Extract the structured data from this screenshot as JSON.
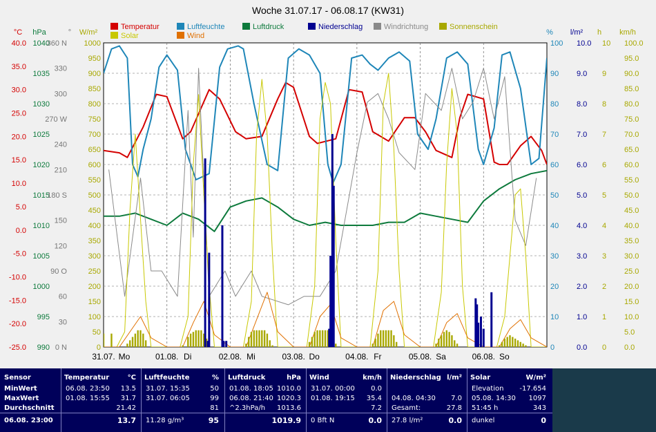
{
  "chart_data": {
    "type": "line",
    "title": "Woche 31.07.17 - 06.08.17 (KW31)",
    "legend": [
      {
        "name": "Temperatur",
        "color": "#d40000"
      },
      {
        "name": "Luftfeuchte",
        "color": "#1e86b8"
      },
      {
        "name": "Luftdruck",
        "color": "#0d7a3c"
      },
      {
        "name": "Niederschlag",
        "color": "#000090"
      },
      {
        "name": "Windrichtung",
        "color": "#8a8a8a"
      },
      {
        "name": "Sonnenschein",
        "color": "#a8a800"
      },
      {
        "name": "Solar",
        "color": "#c8c800"
      },
      {
        "name": "Wind",
        "color": "#e07000"
      }
    ],
    "axes": {
      "temp": {
        "unit": "°C",
        "color": "#d40000",
        "ticks": [
          "40.0",
          "35.0",
          "30.0",
          "25.0",
          "20.0",
          "15.0",
          "10.0",
          "5.0",
          "0.0",
          "-5.0",
          "-10.0",
          "-15.0",
          "-20.0",
          "-25.0"
        ]
      },
      "pressure": {
        "unit": "hPa",
        "color": "#0d7a3c",
        "ticks": [
          "1040",
          "1035",
          "1030",
          "1025",
          "1020",
          "1015",
          "1010",
          "1005",
          "1000",
          "995",
          "990"
        ]
      },
      "direction": {
        "unit": "°",
        "color": "#777777",
        "ticks": [
          "360 N",
          "330",
          "300",
          "270 W",
          "240",
          "210",
          "180 S",
          "150",
          "120",
          "90  O",
          "60",
          "30",
          "0   N"
        ]
      },
      "solar": {
        "unit": "W/m²",
        "color": "#a8a800",
        "ticks": [
          "1000",
          "950",
          "900",
          "850",
          "800",
          "750",
          "700",
          "650",
          "600",
          "550",
          "500",
          "450",
          "400",
          "350",
          "300",
          "250",
          "200",
          "150",
          "100",
          "50",
          "0"
        ]
      },
      "humidity": {
        "unit": "%",
        "color": "#1e86b8",
        "ticks": [
          "100",
          "90",
          "80",
          "70",
          "60",
          "50",
          "40",
          "30",
          "20",
          "10",
          "0"
        ]
      },
      "rain": {
        "unit": "l/m²",
        "color": "#000090",
        "ticks": [
          "10.0",
          "9.0",
          "8.0",
          "7.0",
          "6.0",
          "5.0",
          "4.0",
          "3.0",
          "2.0",
          "1.0",
          "0.0"
        ]
      },
      "sunshine": {
        "unit": "h",
        "color": "#a8a800",
        "ticks": [
          "10",
          "9",
          "8",
          "7",
          "6",
          "5",
          "4",
          "3",
          "2",
          "1",
          "0"
        ]
      },
      "wind": {
        "unit": "km/h",
        "color": "#a8a800",
        "ticks": [
          "100.0",
          "95.0",
          "90.0",
          "85.0",
          "80.0",
          "75.0",
          "70.0",
          "65.0",
          "60.0",
          "55.0",
          "50.0",
          "45.0",
          "40.0",
          "35.0",
          "30.0",
          "25.0",
          "20.0",
          "15.0",
          "10.0",
          "5.0",
          "0.0"
        ]
      }
    },
    "x_days": [
      {
        "date": "31.07.",
        "day": "Mo"
      },
      {
        "date": "01.08.",
        "day": "Di"
      },
      {
        "date": "02.08.",
        "day": "Mi"
      },
      {
        "date": "03.08.",
        "day": "Do"
      },
      {
        "date": "04.08.",
        "day": "Fr"
      },
      {
        "date": "05.08.",
        "day": "Sa"
      },
      {
        "date": "06.08.",
        "day": "So"
      }
    ],
    "series": [
      {
        "name": "Temperatur",
        "axis": "temp",
        "x_hours": [
          0,
          6,
          9,
          15,
          20,
          24,
          30,
          33,
          40,
          44,
          50,
          54,
          60,
          66,
          69,
          72,
          78,
          81,
          88,
          93,
          98,
          102,
          105,
          108,
          114,
          118,
          122,
          126,
          132,
          135,
          138,
          144,
          148,
          150,
          153,
          158,
          162,
          166,
          168
        ],
        "values": [
          17,
          16.5,
          15.5,
          22,
          29,
          28.5,
          19.5,
          21,
          30,
          28,
          21,
          19.5,
          20,
          28,
          31.5,
          30.5,
          20,
          18.5,
          19.5,
          30,
          29.5,
          21,
          20,
          19,
          24,
          24,
          21,
          17,
          15.5,
          24,
          29,
          28,
          14.5,
          14,
          14,
          18,
          20,
          17,
          14
        ]
      },
      {
        "name": "Luftfeuchte",
        "axis": "humidity",
        "x_hours": [
          0,
          3,
          6,
          9,
          11,
          13,
          15,
          18,
          21,
          24,
          28,
          31,
          35,
          40,
          44,
          47,
          51,
          53,
          57,
          62,
          66,
          70,
          74,
          78,
          82,
          85,
          87,
          90,
          94,
          98,
          101,
          104,
          108,
          112,
          116,
          119,
          123,
          126,
          130,
          134,
          138,
          142,
          144,
          148,
          151,
          154,
          158,
          162,
          165,
          168
        ],
        "values": [
          90,
          98,
          99,
          95,
          60,
          56,
          65,
          75,
          92,
          96,
          91,
          65,
          55,
          57,
          92,
          98,
          99,
          98,
          80,
          60,
          58,
          95,
          98,
          96,
          90,
          60,
          54,
          60,
          95,
          96,
          93,
          91,
          95,
          97,
          94,
          70,
          65,
          75,
          95,
          97,
          93,
          65,
          60,
          72,
          96,
          97,
          85,
          60,
          62,
          95
        ]
      },
      {
        "name": "Luftdruck",
        "axis": "pressure",
        "x_hours": [
          0,
          6,
          12,
          18,
          24,
          30,
          36,
          42,
          48,
          54,
          60,
          66,
          72,
          78,
          84,
          90,
          96,
          102,
          108,
          114,
          120,
          126,
          132,
          138,
          144,
          150,
          156,
          162,
          168
        ],
        "values": [
          1011.5,
          1011.5,
          1012,
          1011,
          1010,
          1012,
          1011,
          1009,
          1013,
          1014,
          1014.5,
          1013,
          1011,
          1010,
          1010.5,
          1010,
          1010,
          1010,
          1010.5,
          1010.5,
          1012,
          1011.5,
          1011,
          1010.5,
          1014,
          1016,
          1017.5,
          1018.5,
          1019
        ]
      },
      {
        "name": "Windrichtung",
        "axis": "direction",
        "x_hours": [
          2,
          8,
          14,
          18,
          22,
          28,
          32,
          34,
          36,
          40,
          46,
          50,
          56,
          60,
          70,
          76,
          82,
          88,
          96,
          100,
          104,
          108,
          112,
          118,
          122,
          128,
          132,
          136,
          140,
          144,
          148,
          152,
          156,
          160,
          164
        ],
        "values": [
          210,
          60,
          200,
          90,
          90,
          60,
          280,
          130,
          330,
          60,
          90,
          60,
          90,
          60,
          50,
          60,
          60,
          90,
          230,
          290,
          300,
          270,
          230,
          210,
          300,
          280,
          330,
          270,
          290,
          330,
          270,
          320,
          150,
          120,
          200
        ]
      },
      {
        "name": "Solar",
        "axis": "solar",
        "x_hours": [
          0,
          5,
          8,
          10,
          12,
          14,
          16,
          18,
          24,
          29,
          32,
          34,
          36,
          38,
          40,
          42,
          48,
          53,
          56,
          58,
          60,
          62,
          64,
          66,
          72,
          77,
          80,
          82,
          84,
          86,
          88,
          90,
          96,
          101,
          104,
          106,
          108,
          110,
          112,
          114,
          120,
          125,
          128,
          130,
          132,
          134,
          136,
          138,
          144,
          149,
          152,
          154,
          156,
          158,
          160,
          162,
          168
        ],
        "values": [
          0,
          0,
          50,
          450,
          700,
          420,
          150,
          0,
          0,
          0,
          100,
          600,
          830,
          500,
          200,
          0,
          0,
          0,
          150,
          700,
          880,
          700,
          300,
          0,
          0,
          0,
          200,
          750,
          870,
          800,
          350,
          0,
          0,
          0,
          250,
          800,
          900,
          650,
          250,
          0,
          0,
          0,
          180,
          600,
          850,
          700,
          200,
          0,
          0,
          0,
          100,
          300,
          500,
          520,
          300,
          0,
          0
        ]
      },
      {
        "name": "Wind",
        "axis": "wind",
        "x_hours": [
          0,
          6,
          10,
          14,
          18,
          24,
          30,
          34,
          38,
          42,
          48,
          54,
          58,
          62,
          66,
          72,
          78,
          82,
          86,
          90,
          96,
          102,
          106,
          110,
          114,
          120,
          126,
          130,
          134,
          138,
          144,
          150,
          154,
          158,
          162,
          168
        ],
        "values": [
          0,
          0,
          5,
          10,
          3,
          0,
          0,
          8,
          15,
          4,
          0,
          0,
          9,
          18,
          5,
          0,
          0,
          10,
          14,
          3,
          0,
          0,
          12,
          15,
          4,
          0,
          0,
          8,
          11,
          3,
          0,
          0,
          6,
          9,
          3,
          0
        ]
      },
      {
        "name": "Sonnenschein",
        "axis": "sunshine",
        "x_hours": [
          0,
          3,
          6,
          9,
          10,
          11,
          12,
          13,
          14,
          15,
          16,
          24,
          30,
          32,
          33,
          34,
          35,
          36,
          37,
          38,
          39,
          40,
          48,
          54,
          55,
          56,
          57,
          58,
          59,
          60,
          61,
          62,
          63,
          64,
          72,
          78,
          79,
          80,
          81,
          82,
          83,
          84,
          85,
          86,
          87,
          88,
          96,
          102,
          103,
          104,
          105,
          106,
          107,
          108,
          109,
          110,
          111,
          120,
          126,
          127,
          128,
          129,
          130,
          131,
          132,
          133,
          134,
          144,
          150,
          151,
          152,
          153,
          154,
          155,
          156,
          157,
          158,
          159,
          160
        ],
        "values": [
          0.8,
          0.8,
          0,
          0.2,
          0.4,
          0.6,
          0.8,
          1,
          1,
          0.8,
          0.4,
          0,
          0.1,
          0.6,
          0.8,
          0.9,
          1,
          1,
          1,
          0.8,
          0.5,
          0.2,
          0,
          0.2,
          0.6,
          0.9,
          1,
          1,
          1,
          1,
          1,
          0.8,
          0.4,
          0.1,
          0,
          0.3,
          0.6,
          0.9,
          1,
          1,
          1,
          1,
          1,
          0.9,
          0.6,
          0.2,
          0,
          0.2,
          0.5,
          0.8,
          1,
          1,
          1,
          1,
          1,
          0.7,
          0.3,
          0,
          0.2,
          0.5,
          0.7,
          0.9,
          1,
          0.9,
          0.7,
          0.4,
          0.2,
          0,
          0.1,
          0.3,
          0.5,
          0.6,
          0.7,
          0.6,
          0.5,
          0.4,
          0.3,
          0.2,
          0.1
        ]
      },
      {
        "name": "Niederschlag",
        "axis": "rain",
        "x_hours": [
          38.5,
          39.5,
          40,
          45,
          45.5,
          46.5,
          85.5,
          86,
          86.7,
          87.2,
          141,
          141.5,
          142,
          143,
          144,
          147
        ],
        "values": [
          6.2,
          0.2,
          3.1,
          4.0,
          0.2,
          0.2,
          0.6,
          3.0,
          7.0,
          5.3,
          1.6,
          1.4,
          0.8,
          1.0,
          0.6,
          1.8
        ]
      }
    ]
  },
  "table": {
    "cols": [
      {
        "key": "sensor",
        "head": "Sensor",
        "unit": "",
        "rows": [
          "MinWert",
          "MaxWert",
          "Durchschnitt"
        ],
        "foot": "06.08. 23:00"
      },
      {
        "key": "temp",
        "head": "Temperatur",
        "unit": "°C",
        "rows": [
          [
            "06.08. 23:50",
            "13.5"
          ],
          [
            "01.08. 15:55",
            "31.7"
          ],
          [
            "",
            "21.42"
          ]
        ],
        "foot": [
          "",
          "13.7"
        ]
      },
      {
        "key": "hum",
        "head": "Luftfeuchte",
        "unit": "%",
        "rows": [
          [
            "31.07. 15:35",
            "50"
          ],
          [
            "31.07. 06:05",
            "99"
          ],
          [
            "",
            "81"
          ]
        ],
        "foot": [
          "11.28 g/m³",
          "95"
        ]
      },
      {
        "key": "press",
        "head": "Luftdruck",
        "unit": "hPa",
        "rows": [
          [
            "01.08. 18:05",
            "1010.0"
          ],
          [
            "06.08. 21:40",
            "1020.3"
          ],
          [
            "^2.3hPa/h",
            "1013.6"
          ]
        ],
        "foot": [
          "",
          "1019.9"
        ]
      },
      {
        "key": "wind",
        "head": "Wind",
        "unit": "km/h",
        "rows": [
          [
            "31.07. 00:00",
            "0.0"
          ],
          [
            "01.08. 19:15",
            "35.4"
          ],
          [
            "",
            "7.2"
          ]
        ],
        "foot": [
          "0 Bft N",
          "0.0"
        ]
      },
      {
        "key": "rain",
        "head": "Niederschlag",
        "unit": "l/m²",
        "rows": [
          [
            "",
            ""
          ],
          [
            "04.08. 04:30",
            "7.0"
          ],
          [
            "Gesamt:",
            "27.8"
          ]
        ],
        "foot": [
          "27.8 l/m²",
          "0.0"
        ]
      },
      {
        "key": "solar",
        "head": "Solar",
        "unit": "W/m²",
        "rows": [
          [
            "Elevation",
            "-17.654"
          ],
          [
            "05.08. 14:30",
            "1097"
          ],
          [
            "51:45 h",
            "343"
          ]
        ],
        "foot": [
          "dunkel",
          "0"
        ]
      }
    ]
  }
}
